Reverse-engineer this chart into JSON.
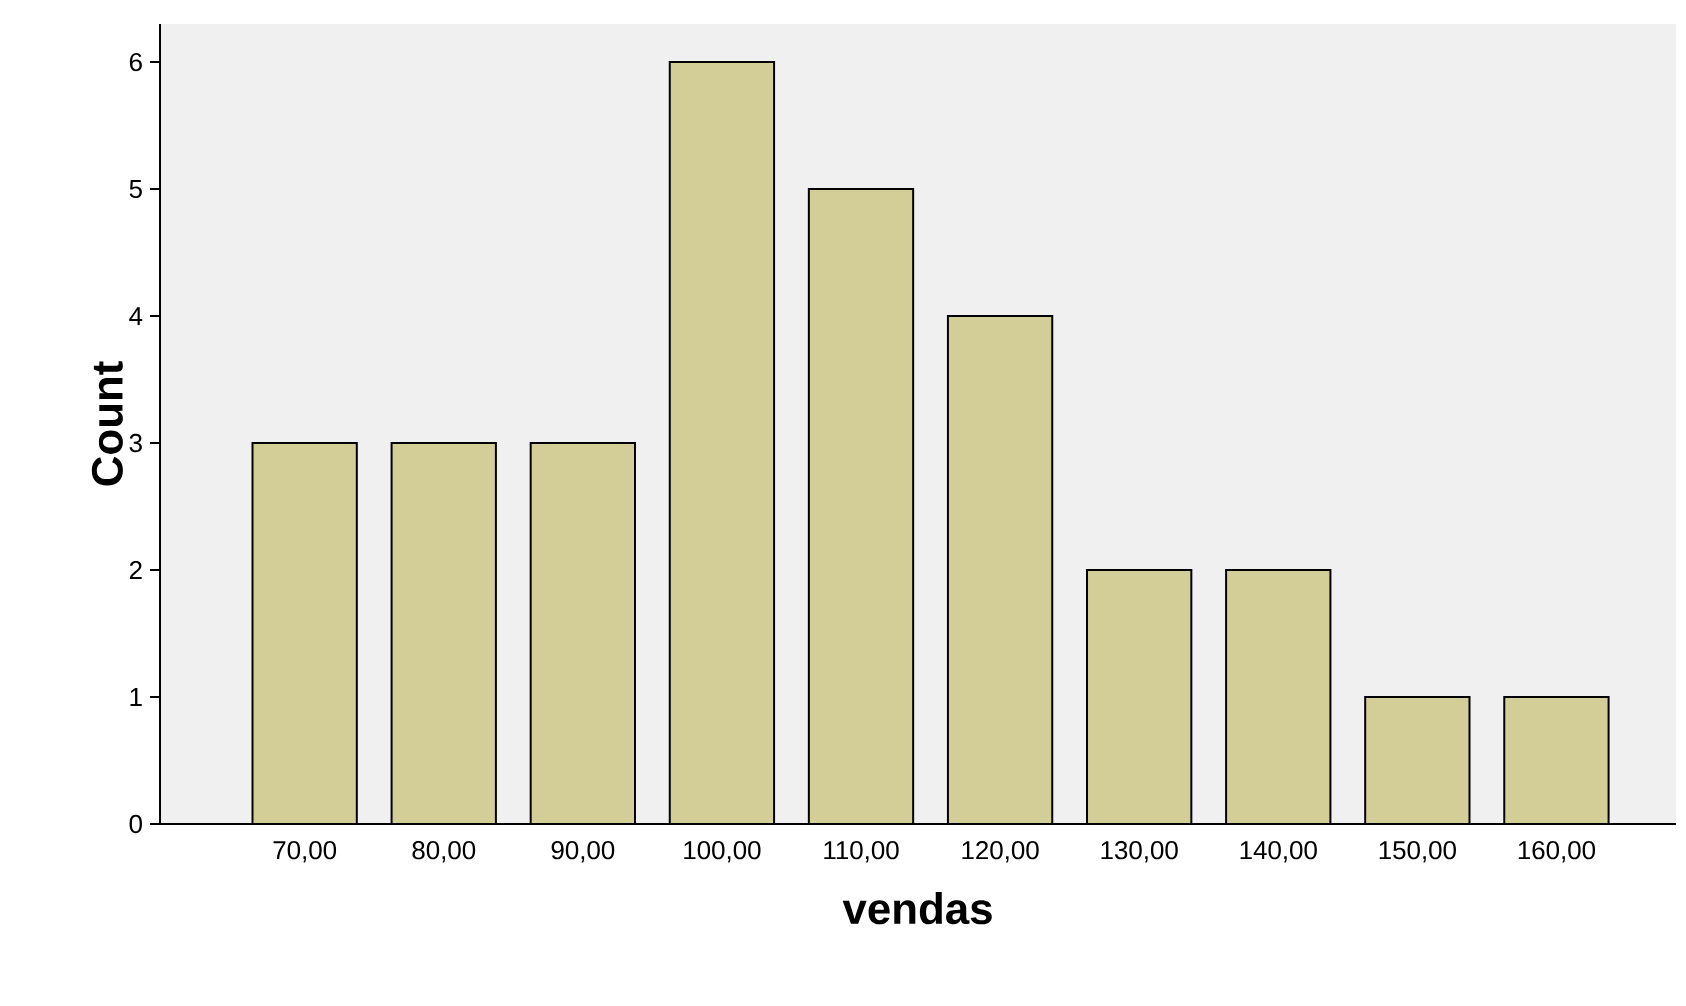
{
  "chart_data": {
    "type": "bar",
    "xlabel": "vendas",
    "ylabel": "Count",
    "categories": [
      "70,00",
      "80,00",
      "90,00",
      "100,00",
      "110,00",
      "120,00",
      "130,00",
      "140,00",
      "150,00",
      "160,00"
    ],
    "values": [
      3,
      3,
      3,
      6,
      5,
      4,
      2,
      2,
      1,
      1
    ],
    "color": "#d3ce97",
    "ylim": [
      0,
      6.3
    ],
    "yticks": [
      0,
      1,
      2,
      3,
      4,
      5,
      6
    ]
  }
}
